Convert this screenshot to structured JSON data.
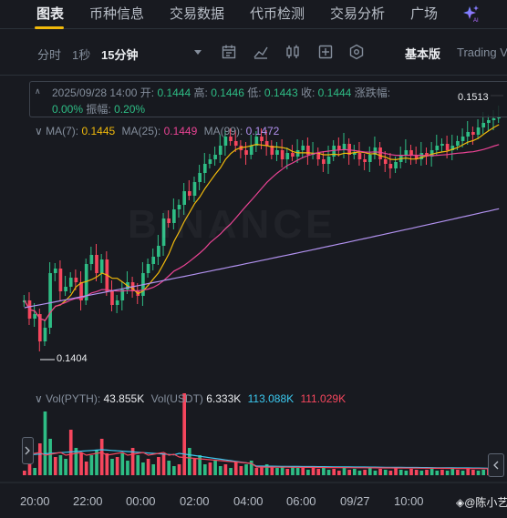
{
  "nav": {
    "tabs": [
      "图表",
      "币种信息",
      "交易数据",
      "代币检测",
      "交易分析",
      "广场"
    ],
    "active_index": 0,
    "ai_icon": "ai-sparkle-icon"
  },
  "toolbar": {
    "timeframes": [
      "分时",
      "1秒",
      "15分钟"
    ],
    "active_timeframe": "15分钟",
    "icons": [
      "dropdown-caret-icon",
      "calendar-indicator-icon",
      "drawing-tool-icon",
      "candle-style-icon",
      "indicator-settings-icon",
      "hexagon-settings-icon"
    ],
    "basic_version": "基本版",
    "tradingview": "Trading V"
  },
  "ohlc": {
    "datetime": "2025/09/28 14:00",
    "open_label": "开:",
    "open": "0.1444",
    "high_label": "高:",
    "high": "0.1446",
    "low_label": "低:",
    "low": "0.1443",
    "close_label": "收:",
    "close": "0.1444",
    "change_label": "涨跌幅:",
    "change": "0.00%",
    "amp_label": "振幅:",
    "amp": "0.20%"
  },
  "ma": {
    "ma7_label": "MA(7):",
    "ma7": "0.1445",
    "ma25_label": "MA(25):",
    "ma25": "0.1449",
    "ma99_label": "MA(99):",
    "ma99": "0.1472",
    "colors": {
      "ma7": "#f0b90b",
      "ma25": "#e84393",
      "ma99": "#b292f0"
    }
  },
  "price_labels": {
    "low": "0.1404",
    "high": "0.1513"
  },
  "volume": {
    "vol_label": "Vol(PYTH):",
    "vol": "43.855K",
    "usdt_label": "Vol(USDT)",
    "usdt": "6.333K",
    "ma1": "113.088K",
    "ma2": "111.029K",
    "colors": {
      "ma1": "#3bc9f0",
      "ma2": "#f6465d"
    }
  },
  "xaxis": [
    "20:00",
    "22:00",
    "00:00",
    "02:00",
    "04:00",
    "06:00",
    "09/27",
    "10:00"
  ],
  "watermark_text": "@陈小艺",
  "brand_watermark": "BINANCE",
  "colors": {
    "up": "#2ebd85",
    "down": "#f6465d",
    "bg": "#181a20"
  }
}
